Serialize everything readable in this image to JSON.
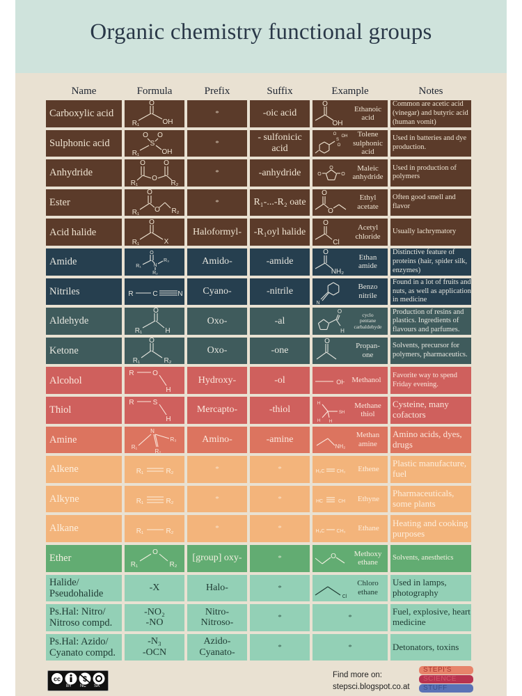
{
  "title": "Organic chemistry functional groups",
  "headers": [
    "Name",
    "Formula",
    "Prefix",
    "Suffix",
    "Example",
    "Notes"
  ],
  "colors": {
    "poster_bg": "#e9e1d2",
    "title_band": "#cfe3dc",
    "carboxyl_derivatives": "#5b3b2a",
    "nitrogen_dark": "#263f4f",
    "carbonyl": "#3f5b5c",
    "alcohol_thiol": "#cf605d",
    "amine": "#dc745f",
    "hydrocarbons": "#f3b47b",
    "ether": "#62ac72",
    "halides": "#93d0b6"
  },
  "rows": [
    {
      "group": "carboxyl_derivatives",
      "name": "Carboxylic acid",
      "formula": {
        "labels": [
          "O",
          "R₁",
          "OH"
        ]
      },
      "prefix": "*",
      "suffix": "-oic acid",
      "example": {
        "labels": [
          "O",
          "OH"
        ],
        "name": "Ethanoic\nacid"
      },
      "notes": "Common are acetic acid (vinegar) and butyric acid (human vomit)"
    },
    {
      "group": "carboxyl_derivatives",
      "name": "Sulphonic acid",
      "formula": {
        "labels": [
          "O",
          "S",
          "O",
          "R₁",
          "OH"
        ]
      },
      "prefix": "*",
      "suffix": "- sulfonicic\nacid",
      "example": {
        "labels": [
          "O",
          "S",
          "OH",
          "O"
        ],
        "name": "Tolene\nsulphonic\nacid"
      },
      "notes": "Used in batteries and dye production."
    },
    {
      "group": "carboxyl_derivatives",
      "name": "Anhydride",
      "formula": {
        "labels": [
          "O",
          "O",
          "O",
          "R₁",
          "R₂"
        ]
      },
      "prefix": "*",
      "suffix": "-anhydride",
      "example": {
        "labels": [
          "O",
          "O",
          "O"
        ],
        "name": "Maleic\nanhydride"
      },
      "notes": "Used in production of polymers"
    },
    {
      "group": "carboxyl_derivatives",
      "name": "Ester",
      "formula": {
        "labels": [
          "O",
          "O",
          "R₂",
          "R₁"
        ]
      },
      "prefix": "*",
      "suffix": "R₁-...-R₂ oate",
      "example": {
        "labels": [
          "O",
          "O"
        ],
        "name": "Ethyl\nacetate"
      },
      "notes": "Often good smell and flavor"
    },
    {
      "group": "carboxyl_derivatives",
      "name": "Acid halide",
      "formula": {
        "labels": [
          "O",
          "R₁",
          "X"
        ]
      },
      "prefix": "Haloformyl-",
      "suffix": "-R₁oyl halide",
      "example": {
        "labels": [
          "O",
          "Cl"
        ],
        "name": "Acetyl\nchloride"
      },
      "notes": "Usually lachrymatory"
    },
    {
      "group": "nitrogen_dark",
      "name": "Amide",
      "formula": {
        "labels": [
          "O",
          "R₁",
          "N",
          "R₃",
          "R₂"
        ]
      },
      "prefix": "Amido-",
      "suffix": "-amide",
      "example": {
        "labels": [
          "O",
          "NH₂"
        ],
        "name": "Ethan\namide"
      },
      "notes": "Distinctive feature of proteins (hair, spider silk, enzymes)"
    },
    {
      "group": "nitrogen_dark",
      "name": "Nitriles",
      "formula": {
        "labels": [
          "R",
          "C",
          "N"
        ]
      },
      "prefix": "Cyano-",
      "suffix": "-nitrile",
      "example": {
        "labels": [
          "N"
        ],
        "name": "Benzo\nnitrile"
      },
      "notes": "Found in a lot of fruits and nuts, as well as application in medicine"
    },
    {
      "group": "carbonyl",
      "name": "Aldehyde",
      "formula": {
        "labels": [
          "O",
          "R₁",
          "H"
        ]
      },
      "prefix": "Oxo-",
      "suffix": "-al",
      "example": {
        "labels": [
          "O",
          "H"
        ],
        "name": "cyclo\npentane\ncarbaldehyde"
      },
      "notes": "Production of resins and plastics. Ingredients of flavours and parfumes."
    },
    {
      "group": "carbonyl",
      "name": "Ketone",
      "formula": {
        "labels": [
          "O",
          "R₁",
          "R₂"
        ]
      },
      "prefix": "Oxo-",
      "suffix": "-one",
      "example": {
        "labels": [
          "O"
        ],
        "name": "Propan-\none"
      },
      "notes": "Solvents, precursor for polymers, pharmaceutics."
    },
    {
      "group": "alcohol_thiol",
      "name": "Alcohol",
      "formula": {
        "labels": [
          "R",
          "O",
          "H"
        ]
      },
      "prefix": "Hydroxy-",
      "suffix": "-ol",
      "example": {
        "labels": [
          "OH"
        ],
        "name": "Methanol"
      },
      "notes": "Favorite way to spend Friday evening."
    },
    {
      "group": "alcohol_thiol",
      "name": "Thiol",
      "formula": {
        "labels": [
          "R",
          "S",
          "H"
        ]
      },
      "prefix": "Mercapto-",
      "suffix": "-thiol",
      "example": {
        "labels": [
          "H",
          "H",
          "H",
          "SH"
        ],
        "name": "Methane\nthiol"
      },
      "notes": "Cysteine, many cofactors"
    },
    {
      "group": "amine",
      "name": "Amine",
      "formula": {
        "labels": [
          "N",
          "R₁",
          "R₃",
          "R₂"
        ]
      },
      "prefix": "Amino-",
      "suffix": "-amine",
      "example": {
        "labels": [
          "NH₂"
        ],
        "name": "Methan\namine"
      },
      "notes": "Amino acids, dyes, drugs"
    },
    {
      "group": "hydrocarbons",
      "name": "Alkene",
      "formula": {
        "labels": [
          "R₁",
          "R₂"
        ]
      },
      "prefix": "*",
      "suffix": "*",
      "example": {
        "labels": [
          "H₂C",
          "CH₂"
        ],
        "name": "Ethene"
      },
      "notes": "Plastic manufacture, fuel"
    },
    {
      "group": "hydrocarbons",
      "name": "Alkyne",
      "formula": {
        "labels": [
          "R₁",
          "R₂"
        ]
      },
      "prefix": "*",
      "suffix": "*",
      "example": {
        "labels": [
          "HC",
          "CH"
        ],
        "name": "Ethyne"
      },
      "notes": "Pharmaceuticals, some plants"
    },
    {
      "group": "hydrocarbons",
      "name": "Alkane",
      "formula": {
        "labels": [
          "R₁",
          "R₂"
        ]
      },
      "prefix": "*",
      "suffix": "*",
      "example": {
        "labels": [
          "H₃C",
          "CH₃"
        ],
        "name": "Ethane"
      },
      "notes": "Heating and cooking purposes"
    },
    {
      "group": "ether",
      "name": "Ether",
      "formula": {
        "labels": [
          "R₁",
          "O",
          "R₂"
        ]
      },
      "prefix": "[group] oxy-",
      "suffix": "*",
      "example": {
        "labels": [
          "O"
        ],
        "name": "Methoxy\nethane"
      },
      "notes": "Solvents, anesthetics"
    },
    {
      "group": "halides",
      "name": "Halide/\nPseudohalide",
      "formula": {
        "text": "-X"
      },
      "prefix": "Halo-",
      "suffix": "*",
      "example": {
        "labels": [
          "Cl"
        ],
        "name": "Chloro\nethane"
      },
      "notes": "Used in lamps, photography"
    },
    {
      "group": "halides",
      "name": "Ps.Hal: Nitro/\nNitroso compd.",
      "formula": {
        "text": "-NO₂\n-NO"
      },
      "prefix": "Nitro-\nNitroso-",
      "suffix": "*",
      "example": {
        "text": "*"
      },
      "notes": "Fuel, explosive, heart medicine"
    },
    {
      "group": "halides",
      "name": "Ps.Hal: Azido/\nCyanato compd.",
      "formula": {
        "text": "-N₃\n-OCN"
      },
      "prefix": "Azido-\nCyanato-",
      "suffix": "*",
      "example": {
        "text": "*"
      },
      "notes": "Detonators, toxins"
    }
  ],
  "footer": {
    "license_badge": "CC BY NC SA",
    "license_labels": [
      "BY",
      "NC",
      "SA"
    ],
    "find_more": "Find more on:",
    "url": "stepsci.blogspot.co.at",
    "logo": [
      "STEPI'S",
      "SCIENCE",
      "STUFF"
    ]
  }
}
